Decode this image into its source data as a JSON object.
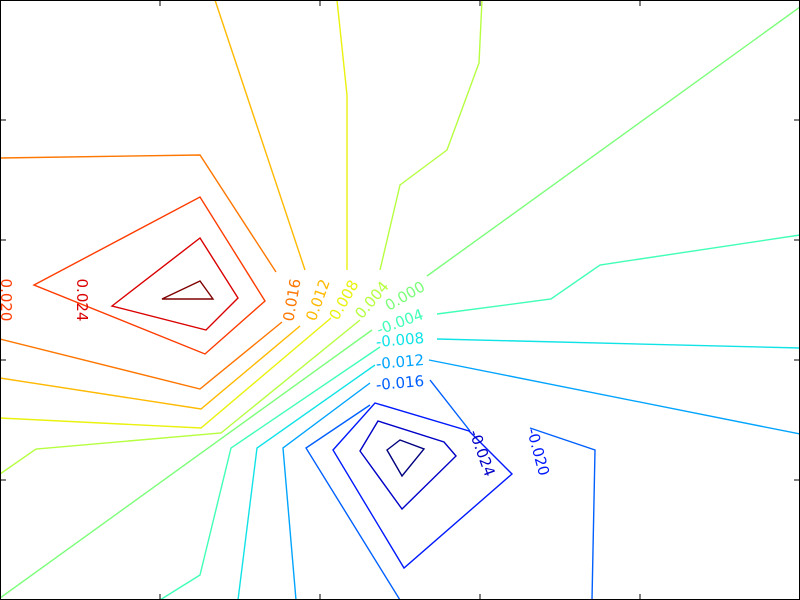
{
  "chart_data": {
    "type": "contour",
    "title": "",
    "xlabel": "",
    "ylabel": "",
    "grid": false,
    "colormap": "jet",
    "levels": [
      {
        "value": -0.028,
        "color": "#00007f"
      },
      {
        "value": -0.024,
        "color": "#0000c8",
        "label": "-0.024"
      },
      {
        "value": -0.02,
        "color": "#0019ff",
        "label": "-0.020"
      },
      {
        "value": -0.016,
        "color": "#0060ff",
        "label": "-0.016"
      },
      {
        "value": -0.012,
        "color": "#00a4ff",
        "label": "-0.012"
      },
      {
        "value": -0.008,
        "color": "#10e3e6",
        "label": "-0.008"
      },
      {
        "value": -0.004,
        "color": "#40ffb6",
        "label": "-0.004"
      },
      {
        "value": 0.0,
        "color": "#7cff7a",
        "label": "0.000"
      },
      {
        "value": 0.004,
        "color": "#b6ff40",
        "label": "0.004"
      },
      {
        "value": 0.008,
        "color": "#e9f20e",
        "label": "0.008"
      },
      {
        "value": 0.012,
        "color": "#ffb900",
        "label": "0.012"
      },
      {
        "value": 0.016,
        "color": "#ff7700",
        "label": "0.016"
      },
      {
        "value": 0.02,
        "color": "#ff3c00",
        "label": "0.020"
      },
      {
        "value": 0.024,
        "color": "#da0000",
        "label": "0.024"
      },
      {
        "value": 0.028,
        "color": "#7f0000"
      }
    ]
  }
}
